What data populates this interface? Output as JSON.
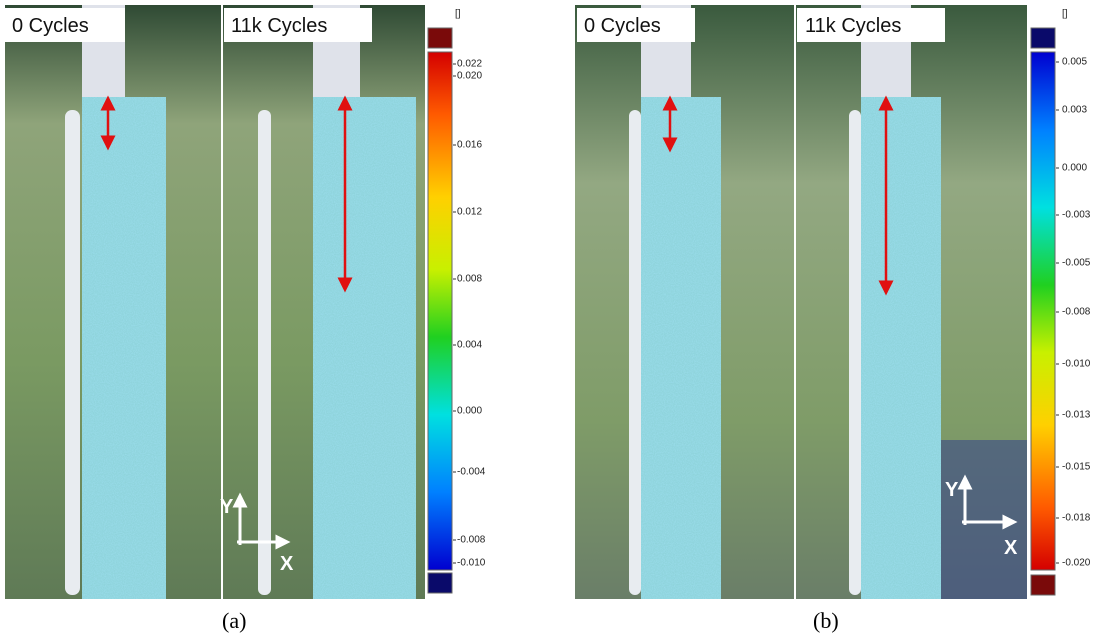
{
  "panels": [
    {
      "caption": "(a)",
      "images": [
        {
          "label": "0 Cycles"
        },
        {
          "label": "11k Cycles"
        }
      ],
      "colorbar": {
        "unit": "[]",
        "ticks": [
          "0.022",
          "0.020",
          "0.016",
          "0.012",
          "0.008",
          "0.004",
          "0.000",
          "-0.004",
          "-0.008",
          "-0.010"
        ]
      },
      "axes": {
        "y": "Y",
        "x": "X"
      }
    },
    {
      "caption": "(b)",
      "images": [
        {
          "label": "0 Cycles"
        },
        {
          "label": "11k Cycles"
        }
      ],
      "colorbar": {
        "unit": "[]",
        "ticks": [
          "0.005",
          "0.003",
          "0.000",
          "-0.003",
          "-0.005",
          "-0.008",
          "-0.010",
          "-0.013",
          "-0.015",
          "-0.018",
          "-0.020"
        ]
      },
      "axes": {
        "y": "Y",
        "x": "X"
      }
    }
  ]
}
